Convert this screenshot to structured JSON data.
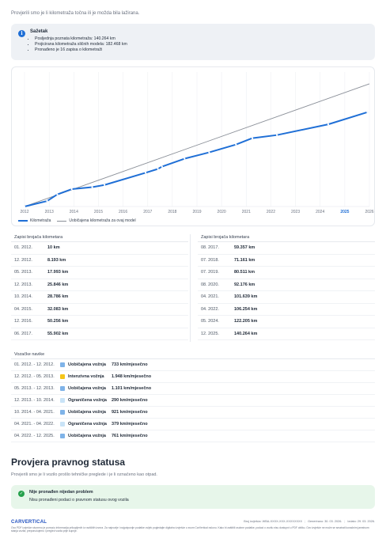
{
  "intro": "Provjerili smo je li kilometraža točna ili je možda bila lažirana.",
  "summary": {
    "title": "Sažetak",
    "items": [
      "Posljednja poznata kilometraža: 140.264 km",
      "Projicirana kilometraža sličnih modela: 182.468 km",
      "Pronađeno je 16 zapisa o kilometraži"
    ]
  },
  "chart_data": {
    "type": "line",
    "x_ticks": [
      "2012",
      "2013",
      "2014",
      "2015",
      "2016",
      "2017",
      "2018",
      "2019",
      "2020",
      "2021",
      "2022",
      "2023",
      "2024",
      "2025",
      "2026"
    ],
    "highlight_tick": "2025",
    "series": [
      {
        "name": "Kilometraža",
        "color": "#1f6fd6",
        "points": [
          [
            "2012-01-01",
            10
          ],
          [
            "2012-12-01",
            8193
          ],
          [
            "2013-05-01",
            17993
          ],
          [
            "2013-12-01",
            25846
          ],
          [
            "2014-10-01",
            28786
          ],
          [
            "2015-04-01",
            32083
          ],
          [
            "2016-12-01",
            50256
          ],
          [
            "2017-06-01",
            55902
          ],
          [
            "2017-08-01",
            59357
          ],
          [
            "2018-07-01",
            71161
          ],
          [
            "2019-07-01",
            80511
          ],
          [
            "2020-08-01",
            92176
          ],
          [
            "2021-04-01",
            101639
          ],
          [
            "2022-04-01",
            106254
          ],
          [
            "2024-05-01",
            122205
          ],
          [
            "2025-12-01",
            140264
          ]
        ]
      },
      {
        "name": "Uobičajena kilometraža za ovaj model",
        "color": "#8a8f98",
        "points": [
          [
            "2012-01-01",
            0
          ],
          [
            "2026-01-01",
            182468
          ]
        ]
      }
    ],
    "ylim": [
      0,
      200000
    ],
    "grid": true,
    "legend": "bottom-left"
  },
  "readings": {
    "title": "Zapisi brojača kilometara",
    "unit": "km",
    "left": [
      {
        "date": "01. 2012.",
        "km": "10 km"
      },
      {
        "date": "12. 2012.",
        "km": "8.193 km"
      },
      {
        "date": "05. 2013.",
        "km": "17.993 km"
      },
      {
        "date": "12. 2013.",
        "km": "25.846 km"
      },
      {
        "date": "10. 2014.",
        "km": "28.786 km"
      },
      {
        "date": "04. 2015.",
        "km": "32.083 km"
      },
      {
        "date": "12. 2016.",
        "km": "50.256 km"
      },
      {
        "date": "06. 2017.",
        "km": "55.902 km"
      }
    ],
    "right": [
      {
        "date": "08. 2017.",
        "km": "59.357 km"
      },
      {
        "date": "07. 2018.",
        "km": "71.161 km"
      },
      {
        "date": "07. 2019.",
        "km": "80.511 km"
      },
      {
        "date": "08. 2020.",
        "km": "92.176 km"
      },
      {
        "date": "04. 2021.",
        "km": "101.639 km"
      },
      {
        "date": "04. 2022.",
        "km": "106.254 km"
      },
      {
        "date": "05. 2024.",
        "km": "122.205 km"
      },
      {
        "date": "12. 2025.",
        "km": "140.264 km"
      }
    ]
  },
  "driving": {
    "title": "Vozačke navike",
    "rows": [
      {
        "period": "01. 2012. - 12. 2012.",
        "style": "Uobičajena vožnja",
        "color": "#7fb3e8",
        "km": "733 km/mjesečno"
      },
      {
        "period": "12. 2012. - 05. 2013.",
        "style": "Intenzivna vožnja",
        "color": "#f5c518",
        "km": "1.948 km/mjesečno"
      },
      {
        "period": "05. 2013. - 12. 2013.",
        "style": "Uobičajena vožnja",
        "color": "#7fb3e8",
        "km": "1.101 km/mjesečno"
      },
      {
        "period": "12. 2013. - 10. 2014.",
        "style": "Ograničena vožnja",
        "color": "#c9e3f7",
        "km": "290 km/mjesečno"
      },
      {
        "period": "10. 2014. - 04. 2021.",
        "style": "Uobičajena vožnja",
        "color": "#7fb3e8",
        "km": "921 km/mjesečno"
      },
      {
        "period": "04. 2021. - 04. 2022.",
        "style": "Ograničena vožnja",
        "color": "#c9e3f7",
        "km": "379 km/mjesečno"
      },
      {
        "period": "04. 2022. - 12. 2025.",
        "style": "Uobičajena vožnja",
        "color": "#7fb3e8",
        "km": "761 km/mjesečno"
      }
    ]
  },
  "legal": {
    "title": "Provjera pravnog statusa",
    "subtitle": "Provjerili smo je li vozilo prošlo tehničke preglede i je li označeno kao otpad.",
    "ok_title": "Nije pronađen nijedan problem",
    "ok_text": "Nisu pronađeni podaci o pravnom statusu ovog vozila"
  },
  "footer": {
    "logo": "CARVERTICAL",
    "report": "Broj izvješća: WBA-XXXX-XXX-XXXXXXXX",
    "generated": "Generirano: 30. 03. 2026.",
    "page": "Izdato: 29. 03. 2026.",
    "disclaimer": "Ovo PDF izvješće stvoreno je pomoću informacija prikupljenih iz različitih izvora. Za najnovije i najpotpunije podatke uvijek pogledajte digitalno izvješće u svom CarVertical računu. Kako bi zaštitili osobne podatke, podaci o vozilu nisu dostupni u PDF obliku. Ovo izvješće ne može se smatrati konačnim jamstvom stanja vozila; preporučujemo i pregled vozila prije kupnje."
  }
}
